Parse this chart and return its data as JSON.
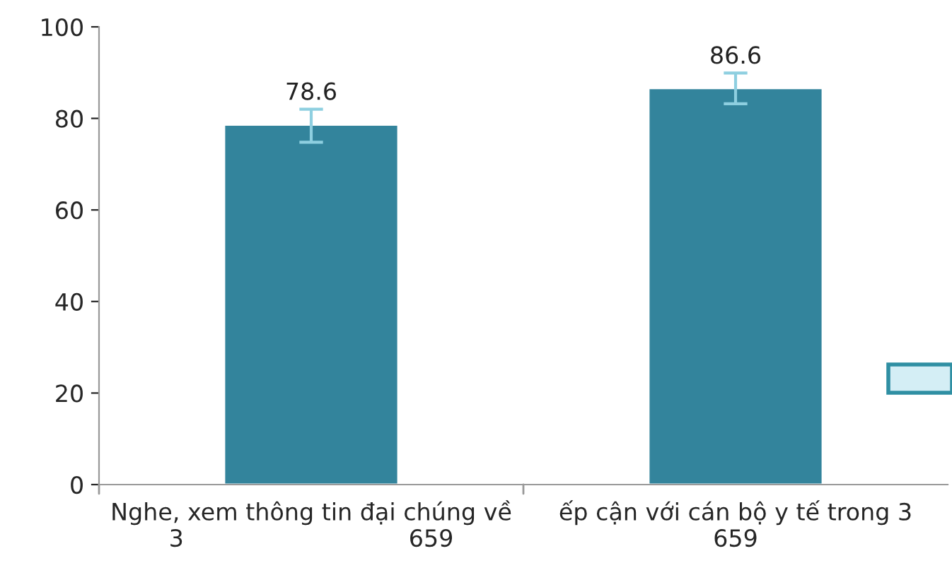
{
  "chart_data": {
    "type": "bar",
    "categories": [
      "Nghe, xem thông tin đại chúng về\n3                              659",
      "ếp cận với cán bộ y tế trong 3\n659"
    ],
    "values": [
      78.6,
      86.6
    ],
    "errors": [
      [
        74.8,
        82.0
      ],
      [
        83.2,
        89.9
      ]
    ],
    "color": "#33849c",
    "ylim": [
      0,
      100
    ],
    "yticks": [
      0,
      20,
      40,
      60,
      80,
      100
    ],
    "data_labels": true,
    "grid": false,
    "legend": false
  }
}
